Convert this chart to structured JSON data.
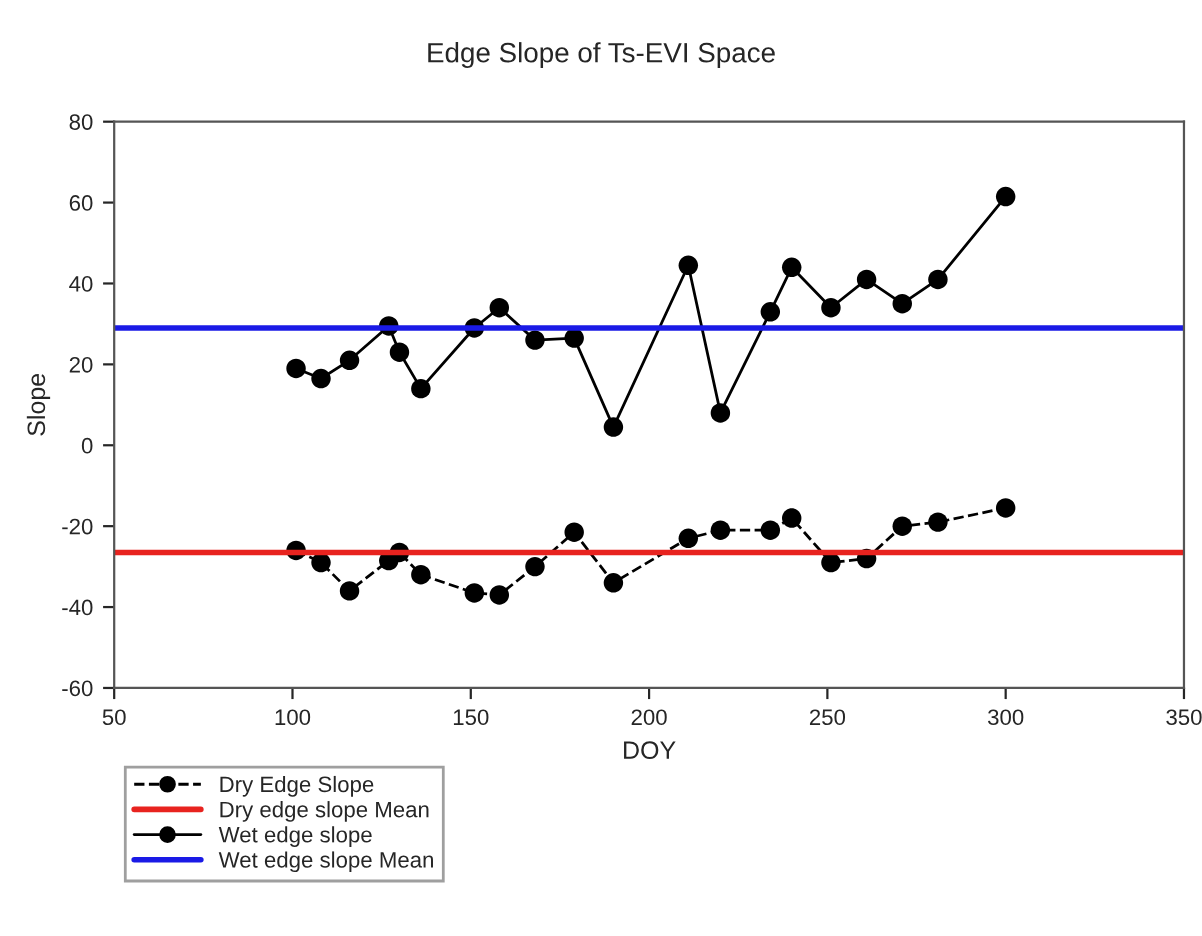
{
  "chart_data": {
    "type": "line",
    "title": "Edge Slope of Ts-EVI Space",
    "xlabel": "DOY",
    "ylabel": "Slope",
    "series": [
      {
        "name": "Dry Edge Slope",
        "color": "#000000",
        "line_style": "dashed",
        "x": [
          101,
          108,
          116,
          127,
          130,
          136,
          151,
          158,
          168,
          179,
          190,
          211,
          220,
          234,
          240,
          251,
          261,
          271,
          281,
          300
        ],
        "values": [
          -26,
          -29,
          -36,
          -28.5,
          -26.5,
          -32,
          -36.5,
          -37,
          -30,
          -21.5,
          -34,
          -23,
          -21,
          -21,
          -18,
          -29,
          -28,
          -20,
          -19,
          -15.5
        ]
      },
      {
        "name": "Wet edge slope",
        "color": "#000000",
        "line_style": "solid",
        "x": [
          101,
          108,
          116,
          127,
          130,
          136,
          151,
          158,
          168,
          179,
          190,
          211,
          220,
          234,
          240,
          251,
          261,
          271,
          281,
          300
        ],
        "values": [
          19,
          16.5,
          21,
          29.5,
          23,
          14,
          29,
          34,
          26,
          26.5,
          4.5,
          44.5,
          8,
          33,
          44,
          34,
          41,
          35,
          41,
          61.5
        ]
      }
    ],
    "ref_lines": [
      {
        "axis": "y",
        "value": -26.5,
        "label": "Dry edge slope Mean",
        "color": "#e8231f"
      },
      {
        "axis": "y",
        "value": 29,
        "label": "Wet edge slope Mean",
        "color": "#1a1ae6"
      }
    ],
    "marker": "circle",
    "grid": false,
    "legend": "bottom left",
    "xlim": [
      50,
      350
    ],
    "xticks": [
      50,
      100,
      150,
      200,
      250,
      300,
      350
    ],
    "ylim": [
      -60,
      80
    ],
    "yticks": [
      -60,
      -40,
      -20,
      0,
      20,
      40,
      60,
      80
    ]
  }
}
